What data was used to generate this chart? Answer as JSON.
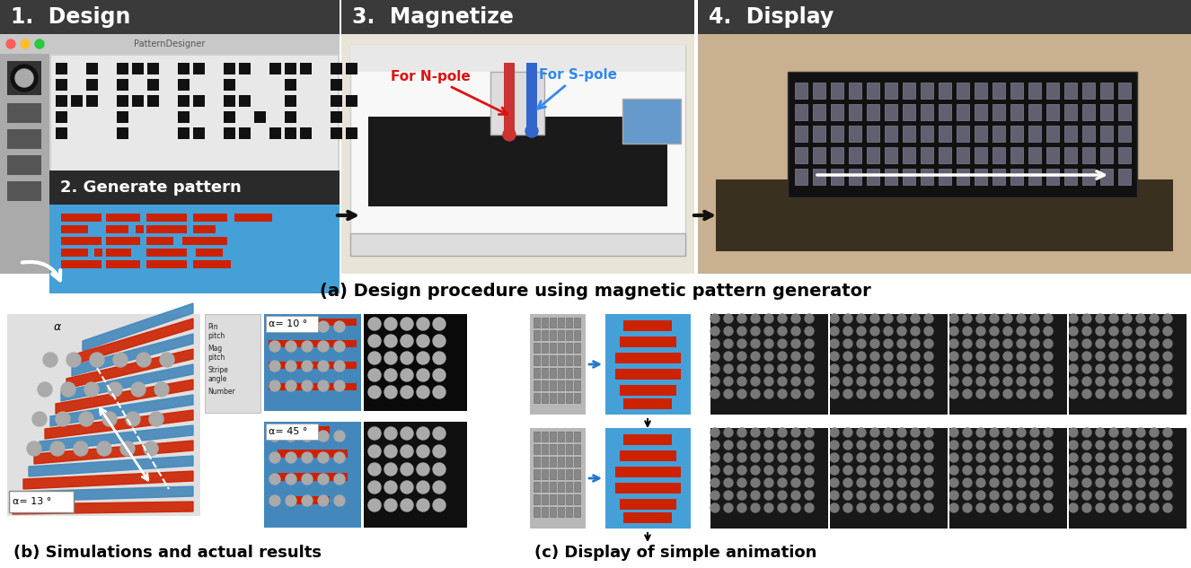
{
  "bg": "#ffffff",
  "caption_a": "(a) Design procedure using magnetic pattern generator",
  "caption_b": "(b) Simulations and actual results",
  "caption_c": "(c) Display of simple animation",
  "label_1": "1.  Design",
  "label_3": "3.  Magnetize",
  "label_4": "4.  Display",
  "label_2": "2. Generate pattern",
  "label_npole": "For N-pole",
  "label_spole": "For S-pole",
  "label_alpha10": "α= 10 °",
  "label_alpha45": "α= 45 °",
  "label_alpha13": "α= 13 °",
  "dark_header": "#3a3a3a",
  "panel_bg_light": "#d0d0d0",
  "panel_bg_white": "#f5f5f5",
  "blue_bg": "#4499cc",
  "pattern_blue": "#45a0d8",
  "red_col": "#cc2200",
  "dark_panel": "#222222",
  "med_gray": "#888888",
  "light_gray": "#cccccc",
  "white": "#ffffff",
  "npole_color": "#dd1111",
  "spole_color": "#3388ee",
  "sim_bg": "#e0e0e0",
  "sim_blue": "#4488bb",
  "toolbar_bg": "#666666",
  "toolbar_dark": "#444444",
  "grid_bg": "#c0c0c0",
  "black": "#111111",
  "gen_dark": "#2a2a2a",
  "display_bg": "#c8b090",
  "table_bg": "#dddddd"
}
